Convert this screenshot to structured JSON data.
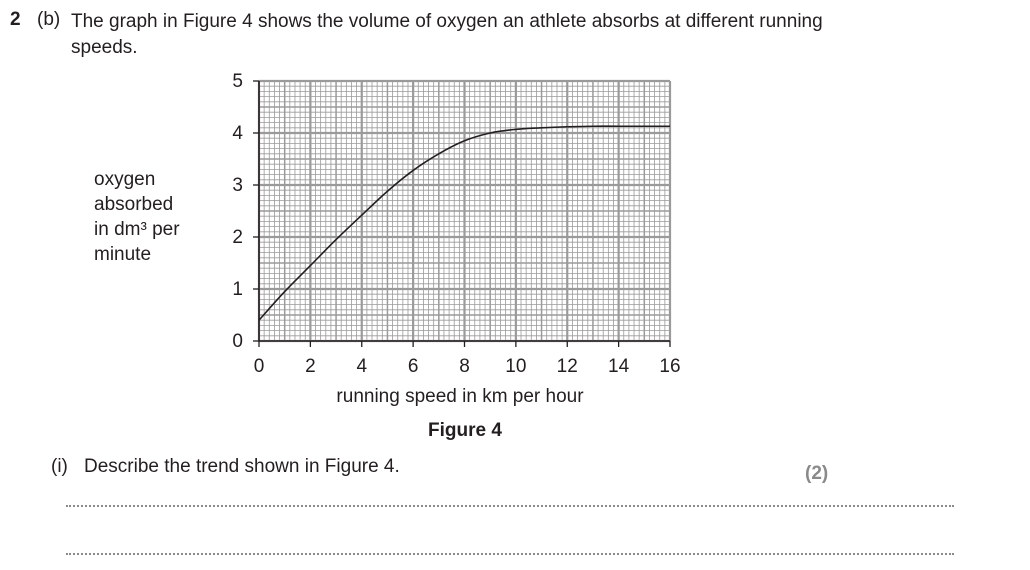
{
  "question": {
    "number": "2",
    "part": "(b)",
    "text": "The graph in Figure 4 shows the volume of oxygen an athlete absorbs at different running speeds."
  },
  "figure_caption": "Figure 4",
  "sub_question": {
    "label": "(i)",
    "text": "Describe the trend shown in Figure 4.",
    "marks": "(2)"
  },
  "chart_data": {
    "type": "line",
    "title": "",
    "xlabel": "running speed in km per hour",
    "ylabel_lines": [
      "oxygen",
      "absorbed",
      "in dm³ per",
      "minute"
    ],
    "xlim": [
      0,
      16
    ],
    "ylim": [
      0,
      5
    ],
    "xticks": [
      "0",
      "2",
      "4",
      "6",
      "8",
      "10",
      "12",
      "14",
      "16"
    ],
    "yticks": [
      "0",
      "1",
      "2",
      "3",
      "4",
      "5"
    ],
    "grid": true,
    "series": [
      {
        "x": [
          0,
          1,
          2,
          3,
          4,
          5,
          6,
          7,
          8,
          9,
          10,
          11,
          12,
          13,
          14,
          15,
          16
        ],
        "values": [
          0.4,
          0.95,
          1.45,
          1.95,
          2.42,
          2.88,
          3.28,
          3.6,
          3.85,
          4.0,
          4.07,
          4.1,
          4.12,
          4.13,
          4.13,
          4.13,
          4.13
        ]
      }
    ],
    "line_color": "#231f20",
    "grid_color": "#9a9a9a"
  }
}
